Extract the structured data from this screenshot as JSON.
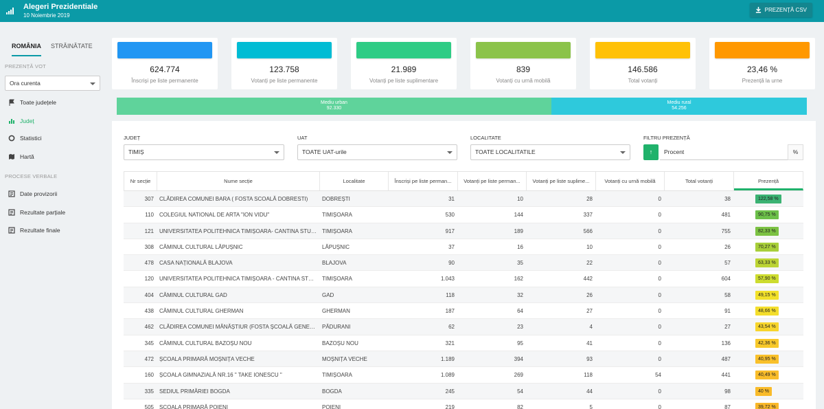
{
  "header": {
    "title": "Alegeri Prezidentiale",
    "date": "10 Noiembrie 2019",
    "csv_button": "PREZENȚĂ CSV"
  },
  "sidebar": {
    "tabs": [
      "ROMÂNIA",
      "STRĂINĂTATE"
    ],
    "section_vot": "PREZENȚĂ VOT",
    "time_select": "Ora curenta",
    "nav": [
      {
        "label": "Toate județele",
        "icon": "flag-icon"
      },
      {
        "label": "Județ",
        "icon": "bar-chart-icon"
      },
      {
        "label": "Statistici",
        "icon": "circle-icon"
      },
      {
        "label": "Hartă",
        "icon": "map-icon"
      }
    ],
    "section_pv": "PROCESE VERBALE",
    "pv_nav": [
      {
        "label": "Date provizorii",
        "icon": "document-icon"
      },
      {
        "label": "Rezultate parțiale",
        "icon": "document-icon"
      },
      {
        "label": "Rezultate finale",
        "icon": "document-icon"
      }
    ]
  },
  "cards": [
    {
      "value": "624.774",
      "label": "Înscriși pe liste permanente",
      "color": "#2196f3"
    },
    {
      "value": "123.758",
      "label": "Votanți pe liste permanente",
      "color": "#00bcd4"
    },
    {
      "value": "21.989",
      "label": "Votanți pe liste suplimentare",
      "color": "#2ecc85"
    },
    {
      "value": "839",
      "label": "Votanți cu urnă mobilă",
      "color": "#8bc34a"
    },
    {
      "value": "146.586",
      "label": "Total votanți",
      "color": "#ffc107"
    },
    {
      "value": "23,46 %",
      "label": "Prezență la urne",
      "color": "#ff9800"
    }
  ],
  "medium": {
    "urban_label": "Mediu urban",
    "urban_value": "92.330",
    "rural_label": "Mediu rural",
    "rural_value": "54.256",
    "urban_share": 0.63,
    "urban_color": "#5fd39b",
    "rural_color": "#2ec9dc"
  },
  "filters": {
    "judet_label": "JUDEȚ",
    "judet_value": "TIMIȘ",
    "uat_label": "UAT",
    "uat_value": "TOATE UAT-urile",
    "localitate_label": "LOCALITATE",
    "localitate_value": "TOATE LOCALITATILE",
    "prezenta_label": "FILTRU PREZENȚĂ",
    "sort_arrow": "↑",
    "prezenta_placeholder": "Procent",
    "prezenta_suffix": "%"
  },
  "table": {
    "columns": [
      "Nr secție",
      "Nume secție",
      "Localitate",
      "Înscriși pe liste perman...",
      "Votanți pe liste perman...",
      "Votanți pe liste suplime...",
      "Votanți cu urnă mobilă",
      "Total votanți",
      "Prezență"
    ],
    "rows": [
      {
        "nr": "307",
        "nume": "CLĂDIREA COMUNEI BARA ( FOSTA SCOALĂ DOBRESTI)",
        "loc": "DOBREȘTI",
        "inscrisi": "31",
        "vperm": "10",
        "vsupl": "28",
        "vmobil": "0",
        "total": "38",
        "prezenta": "122,58 %",
        "color": "#3bb273"
      },
      {
        "nr": "110",
        "nume": "COLEGIUL NATIONAL DE ARTA \"ION VIDU\"",
        "loc": "TIMIȘOARA",
        "inscrisi": "530",
        "vperm": "144",
        "vsupl": "337",
        "vmobil": "0",
        "total": "481",
        "prezenta": "90,75 %",
        "color": "#6cc04a"
      },
      {
        "nr": "121",
        "nume": "UNIVERSITATEA POLITEHNICA TIMIȘOARA- CANTINA STUDENȚEASCĂ",
        "loc": "TIMIȘOARA",
        "inscrisi": "917",
        "vperm": "189",
        "vsupl": "566",
        "vmobil": "0",
        "total": "755",
        "prezenta": "82,33 %",
        "color": "#7cc243"
      },
      {
        "nr": "308",
        "nume": "CĂMINUL CULTURAL LĂPUȘNIC",
        "loc": "LĂPUȘNIC",
        "inscrisi": "37",
        "vperm": "16",
        "vsupl": "10",
        "vmobil": "0",
        "total": "26",
        "prezenta": "70,27 %",
        "color": "#a8cf3a"
      },
      {
        "nr": "478",
        "nume": "CASA NAȚIONALĂ BLAJOVA",
        "loc": "BLAJOVA",
        "inscrisi": "90",
        "vperm": "35",
        "vsupl": "22",
        "vmobil": "0",
        "total": "57",
        "prezenta": "63,33 %",
        "color": "#bcd433"
      },
      {
        "nr": "120",
        "nume": "UNIVERSITATEA POLITEHNICA TIMIȘOARA - CANTINA STUDENȚEASCĂ",
        "loc": "TIMIȘOARA",
        "inscrisi": "1.043",
        "vperm": "162",
        "vsupl": "442",
        "vmobil": "0",
        "total": "604",
        "prezenta": "57,90 %",
        "color": "#cddc2f"
      },
      {
        "nr": "404",
        "nume": "CĂMINUL CULTURAL GAD",
        "loc": "GAD",
        "inscrisi": "118",
        "vperm": "32",
        "vsupl": "26",
        "vmobil": "0",
        "total": "58",
        "prezenta": "49,15 %",
        "color": "#f2e12a"
      },
      {
        "nr": "438",
        "nume": "CĂMINUL CULTURAL GHERMAN",
        "loc": "GHERMAN",
        "inscrisi": "187",
        "vperm": "64",
        "vsupl": "27",
        "vmobil": "0",
        "total": "91",
        "prezenta": "48,66 %",
        "color": "#f4de2c"
      },
      {
        "nr": "462",
        "nume": "CLĂDIREA COMUNEI MĂNĂȘTIUR (FOSTA ȘCOALĂ GENERALĂ)",
        "loc": "PĂDURANI",
        "inscrisi": "62",
        "vperm": "23",
        "vsupl": "4",
        "vmobil": "0",
        "total": "27",
        "prezenta": "43,54 %",
        "color": "#f7d52c"
      },
      {
        "nr": "345",
        "nume": "CĂMINUL CULTURAL BAZOȘU NOU",
        "loc": "BAZOȘU NOU",
        "inscrisi": "321",
        "vperm": "95",
        "vsupl": "41",
        "vmobil": "0",
        "total": "136",
        "prezenta": "42,36 %",
        "color": "#f8c92a"
      },
      {
        "nr": "472",
        "nume": "ȘCOALA PRIMARĂ MOȘNIȚA VECHE",
        "loc": "MOȘNIȚA VECHE",
        "inscrisi": "1.189",
        "vperm": "394",
        "vsupl": "93",
        "vmobil": "0",
        "total": "487",
        "prezenta": "40,95 %",
        "color": "#f9c02a"
      },
      {
        "nr": "160",
        "nume": "ȘCOALA GIMNAZIALĂ NR.16 \" TAKE IONESCU \"",
        "loc": "TIMIȘOARA",
        "inscrisi": "1.089",
        "vperm": "269",
        "vsupl": "118",
        "vmobil": "54",
        "total": "441",
        "prezenta": "40,49 %",
        "color": "#f9bd2a"
      },
      {
        "nr": "335",
        "nume": "SEDIUL PRIMĂRIEI BOGDA",
        "loc": "BOGDA",
        "inscrisi": "245",
        "vperm": "54",
        "vsupl": "44",
        "vmobil": "0",
        "total": "98",
        "prezenta": "40 %",
        "color": "#f9bb2a"
      },
      {
        "nr": "505",
        "nume": "ȘCOALA PRIMARĂ POIENI",
        "loc": "POIENI",
        "inscrisi": "219",
        "vperm": "82",
        "vsupl": "5",
        "vmobil": "0",
        "total": "87",
        "prezenta": "39,72 %",
        "color": "#f9b82a"
      }
    ]
  }
}
